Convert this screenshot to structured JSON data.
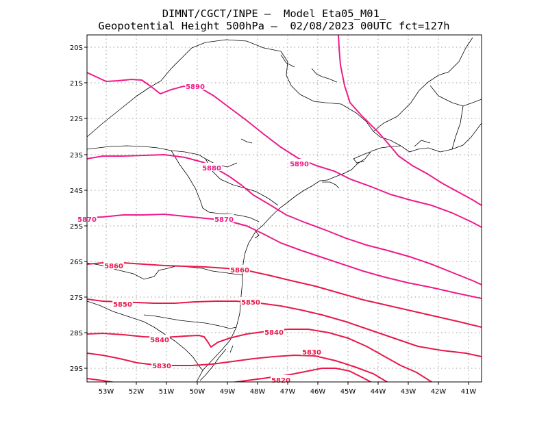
{
  "title_line1": "DIMNT/CGCT/INPE —  Model Eta05_M01_",
  "title_line2": "Geopotential Height 500hPa —  02/08/2023 00UTC fct=127h",
  "map_data": {
    "lat_ticks": [
      "20S",
      "21S",
      "22S",
      "23S",
      "24S",
      "25S",
      "26S",
      "27S",
      "28S",
      "29S"
    ],
    "lon_ticks": [
      "53W",
      "52W",
      "51W",
      "50W",
      "49W",
      "48W",
      "47W",
      "46W",
      "45W",
      "44W",
      "43W",
      "42W",
      "41W"
    ],
    "contour_colors": {
      "major": "#ee1a8a",
      "minor": "#e8184a"
    },
    "contour_labels": [
      "5890",
      "5890",
      "5880",
      "5870",
      "5870",
      "5860",
      "5860",
      "5850",
      "5850",
      "5840",
      "5840",
      "5830",
      "5830",
      "5820"
    ]
  }
}
